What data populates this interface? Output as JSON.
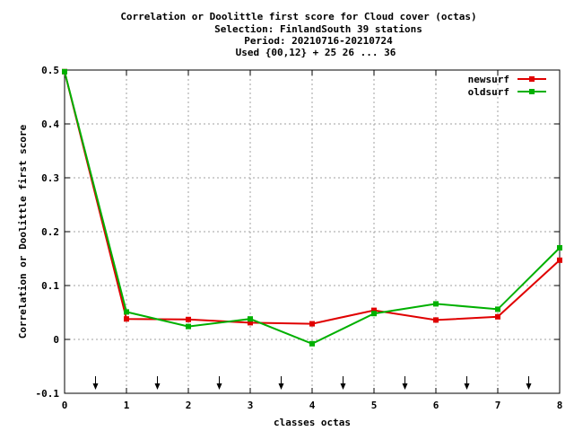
{
  "chart_data": {
    "type": "line",
    "title_lines": [
      "Correlation or Doolittle first score  for Cloud cover (octas)",
      "Selection: FinlandSouth     39 stations",
      "Period: 20210716-20210724",
      "Used {00,12} + 25 26 ... 36"
    ],
    "xlabel": "classes octas",
    "ylabel": "Correlation or Doolittle first score",
    "xlim": [
      0,
      8
    ],
    "ylim": [
      -0.1,
      0.5
    ],
    "xticks": [
      0,
      1,
      2,
      3,
      4,
      5,
      6,
      7,
      8
    ],
    "yticks": [
      -0.1,
      0,
      0.1,
      0.2,
      0.3,
      0.4,
      0.5
    ],
    "ytick_labels": [
      "-0.1",
      "0",
      "0.1",
      "0.2",
      "0.3",
      "0.4",
      "0.5"
    ],
    "grid": true,
    "legend_position": "top-right",
    "class_boundary_arrows": [
      0.5,
      1.5,
      2.5,
      3.5,
      4.5,
      5.5,
      6.5,
      7.5
    ],
    "series": [
      {
        "name": "newsurf",
        "color": "#e00000",
        "x": [
          0,
          1,
          2,
          3,
          4,
          5,
          6,
          7,
          8
        ],
        "y": [
          0.497,
          0.038,
          0.037,
          0.031,
          0.029,
          0.054,
          0.036,
          0.042,
          0.147
        ]
      },
      {
        "name": "oldsurf",
        "color": "#00b000",
        "x": [
          0,
          1,
          2,
          3,
          4,
          5,
          6,
          7,
          8
        ],
        "y": [
          0.497,
          0.051,
          0.024,
          0.038,
          -0.008,
          0.048,
          0.066,
          0.056,
          0.17
        ]
      }
    ]
  }
}
